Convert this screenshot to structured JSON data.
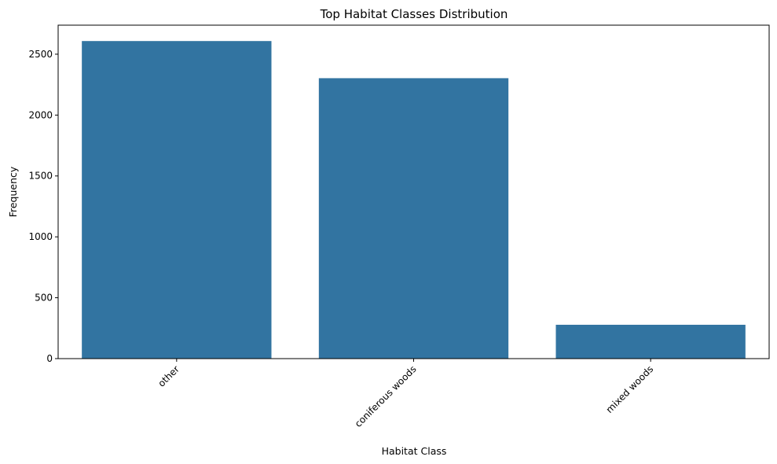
{
  "chart_data": {
    "type": "bar",
    "title": "Top Habitat Classes Distribution",
    "xlabel": "Habitat Class",
    "ylabel": "Frequency",
    "categories": [
      "other",
      "coniferous woods",
      "mixed woods"
    ],
    "values": [
      2608,
      2303,
      278
    ],
    "ylim": [
      0,
      2738.4
    ],
    "yticks": [
      0,
      500,
      1000,
      1500,
      2000,
      2500
    ],
    "x_tick_rotation_deg": 45,
    "grid": false,
    "legend": "none",
    "bar_color": "#3274a1"
  }
}
